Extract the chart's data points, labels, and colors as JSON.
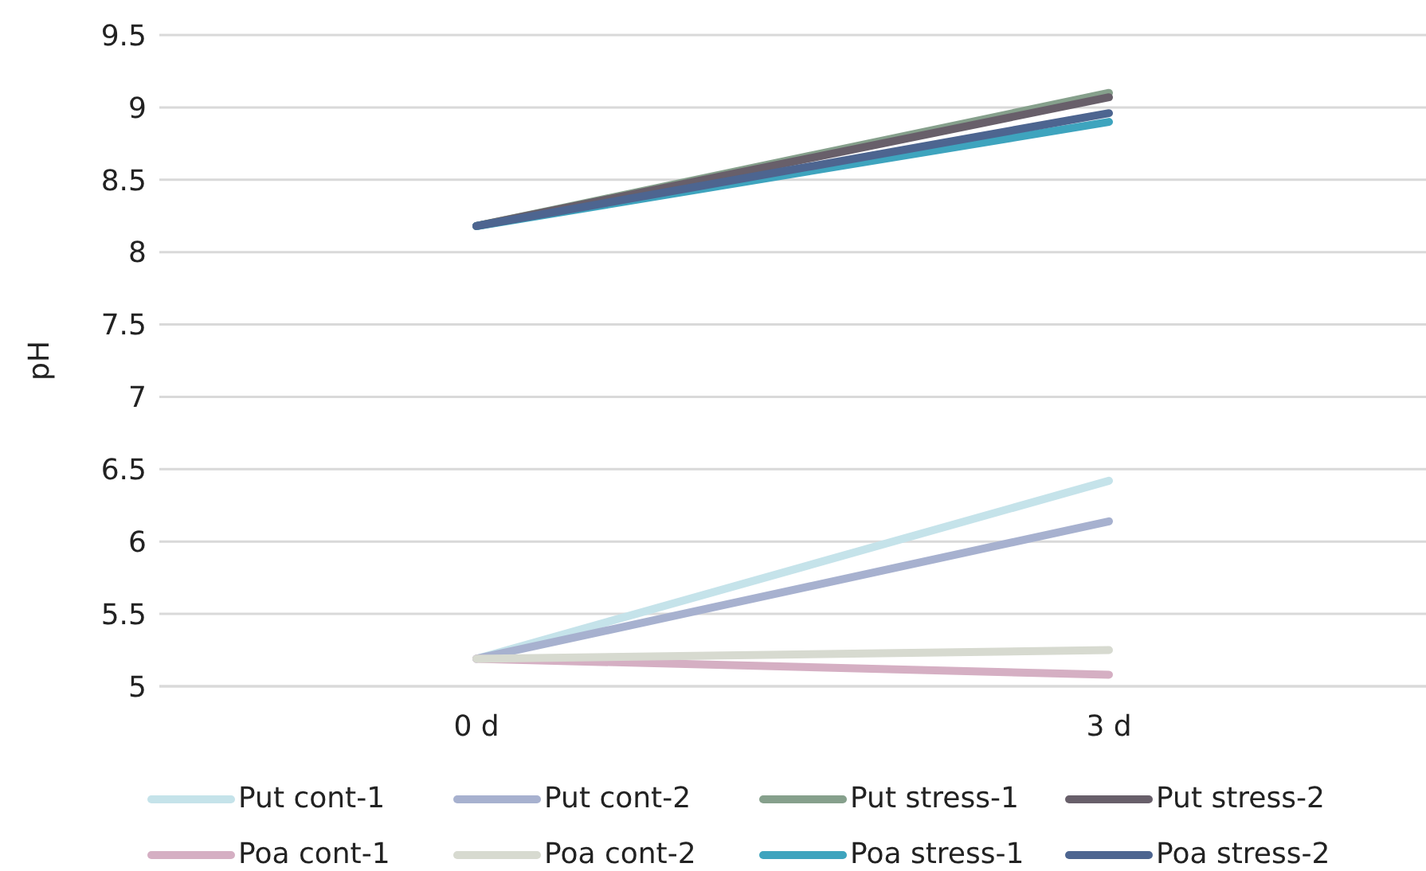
{
  "chart_data": {
    "type": "line",
    "ylabel": "pH",
    "categories": [
      "0 d",
      "3 d"
    ],
    "ylim": [
      5,
      9.5
    ],
    "yticks": [
      5,
      5.5,
      6,
      6.5,
      7,
      7.5,
      8,
      8.5,
      9,
      9.5
    ],
    "grid": "y",
    "legend": "bottom",
    "marker": "none",
    "line_style": "solid",
    "series": [
      {
        "name": "Put cont-1",
        "color": "#c5e3ea",
        "values": [
          5.19,
          6.42
        ]
      },
      {
        "name": "Put cont-2",
        "color": "#a7b1cf",
        "values": [
          5.19,
          6.14
        ]
      },
      {
        "name": "Put stress-1",
        "color": "#86a08c",
        "values": [
          8.18,
          9.1
        ]
      },
      {
        "name": "Put stress-2",
        "color": "#685f6a",
        "values": [
          8.18,
          9.07
        ]
      },
      {
        "name": "Poa cont-1",
        "color": "#d5afc3",
        "values": [
          5.19,
          5.08
        ]
      },
      {
        "name": "Poa cont-2",
        "color": "#d7dad0",
        "values": [
          5.19,
          5.25
        ]
      },
      {
        "name": "Poa stress-1",
        "color": "#3ea4be",
        "values": [
          8.18,
          8.9
        ]
      },
      {
        "name": "Poa stress-2",
        "color": "#4d6590",
        "values": [
          8.18,
          8.96
        ]
      }
    ]
  }
}
